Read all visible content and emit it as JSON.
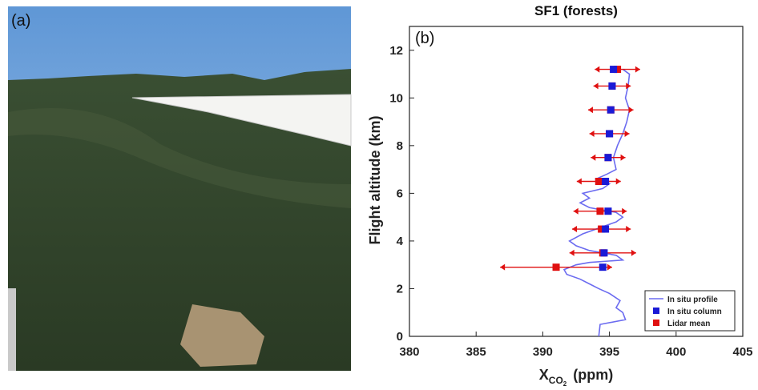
{
  "photo": {
    "label": "(a)"
  },
  "chart_data": {
    "type": "profile",
    "title": "SF1 (forests)",
    "panel_label": "(b)",
    "y_label": "Flight altitude (km)",
    "x_label_parts": [
      "X",
      "CO",
      "2",
      "(ppm)"
    ],
    "xlim": [
      380,
      405
    ],
    "xticks": [
      380,
      385,
      390,
      395,
      400,
      405
    ],
    "ylim": [
      0,
      13
    ],
    "yticks": [
      0,
      2,
      4,
      6,
      8,
      10,
      12
    ],
    "legend_position": "lower right",
    "series": [
      {
        "name": "In situ profile",
        "kind": "line",
        "color": "#6b6bf0",
        "x": [
          394.2,
          394.3,
          396.2,
          396.0,
          395.5,
          395.8,
          395.0,
          394.2,
          393.5,
          392.8,
          391.8,
          391.6,
          392.5,
          393.5,
          396.0,
          395.5,
          393.5,
          392.5,
          392.0,
          393.0,
          394.5,
          395.5,
          396.0,
          395.5,
          393.5,
          392.8,
          393.5,
          393.0,
          394.5,
          395.0,
          394.0,
          394.8,
          395.5,
          395.3,
          395.6,
          396.0,
          396.3,
          396.5,
          396.2,
          396.4,
          396.5,
          396.0
        ],
        "y": [
          0,
          0.5,
          0.7,
          1.0,
          1.2,
          1.5,
          1.8,
          2.0,
          2.2,
          2.4,
          2.6,
          2.8,
          3.0,
          3.1,
          3.2,
          3.4,
          3.6,
          3.8,
          4.0,
          4.3,
          4.6,
          4.8,
          5.0,
          5.2,
          5.4,
          5.6,
          5.8,
          6.0,
          6.2,
          6.4,
          6.6,
          6.8,
          7.0,
          7.5,
          8.0,
          8.5,
          9.0,
          9.5,
          10.0,
          10.5,
          11.0,
          11.2
        ]
      },
      {
        "name": "Lidar mean",
        "kind": "errorbar",
        "color": "#e01010",
        "x": [
          395.6,
          395.2,
          395.1,
          395.0,
          394.9,
          394.2,
          394.3,
          394.4,
          394.5,
          391.0
        ],
        "xerr": [
          1.7,
          1.4,
          1.7,
          1.5,
          1.3,
          1.65,
          2.0,
          2.2,
          2.5,
          4.2
        ],
        "y": [
          11.2,
          10.5,
          9.5,
          8.5,
          7.5,
          6.5,
          5.25,
          4.5,
          3.5,
          2.9
        ]
      },
      {
        "name": "In situ  column",
        "kind": "marker",
        "color": "#1a1ad6",
        "x": [
          395.3,
          395.2,
          395.1,
          395.0,
          394.9,
          394.7,
          394.9,
          394.7,
          394.6,
          394.5
        ],
        "y": [
          11.2,
          10.5,
          9.5,
          8.5,
          7.5,
          6.5,
          5.25,
          4.5,
          3.5,
          2.9
        ]
      }
    ]
  }
}
